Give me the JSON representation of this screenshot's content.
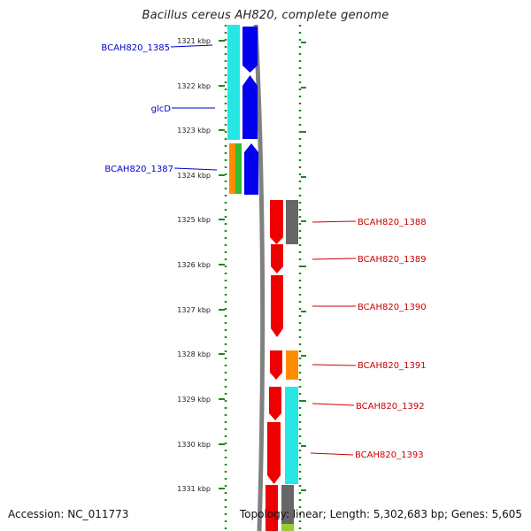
{
  "title": "Bacillus cereus AH820, complete genome",
  "accession_text": "Accession: NC_011773",
  "summary_text": "Topology: linear; Length: 5,302,683 bp; Genes: 5,605",
  "scale_labels": [
    "1321 kbp",
    "1322 kbp",
    "1323 kbp",
    "1324 kbp",
    "1325 kbp",
    "1326 kbp",
    "1327 kbp",
    "1328 kbp",
    "1329 kbp",
    "1330 kbp",
    "1331 kbp"
  ],
  "left_gene_labels": [
    "BCAH820_1385",
    "glcD",
    "BCAH820_1387"
  ],
  "right_gene_labels": [
    "BCAH820_1388",
    "BCAH820_1389",
    "BCAH820_1390",
    "BCAH820_1391",
    "BCAH820_1392",
    "BCAH820_1393"
  ],
  "colors": {
    "left_label": "#0000cc",
    "right_label": "#cc0000",
    "scale_tick": "#1a8a1a",
    "backbone": "#808080",
    "cyan": "#27e6e6",
    "blue": "#0000ee",
    "red": "#ee0000",
    "gray": "#666666",
    "orange": "#ff8c00",
    "green": "#33bb33"
  }
}
